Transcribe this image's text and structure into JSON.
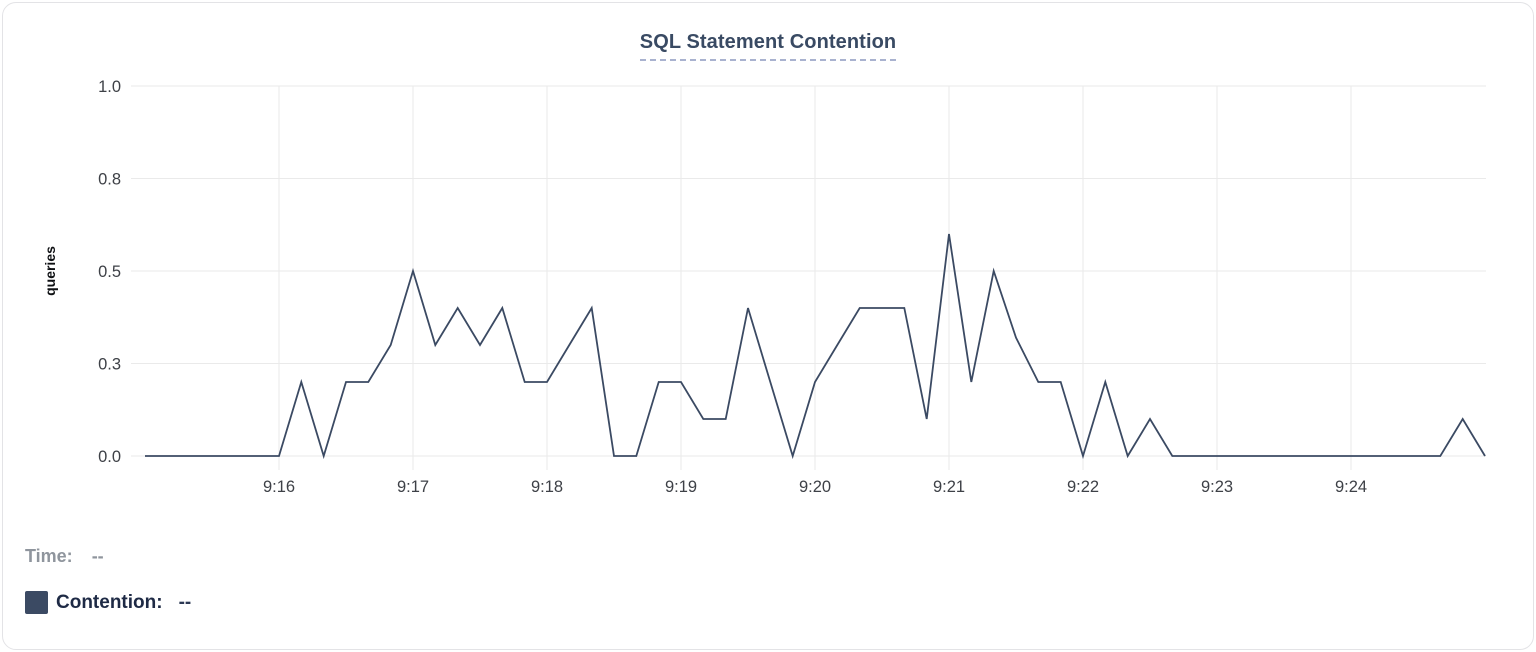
{
  "card": {
    "title": "SQL Statement Contention"
  },
  "chart_data": {
    "type": "line",
    "title": "SQL Statement Contention",
    "xlabel": "",
    "ylabel": "queries",
    "ylim": [
      0,
      1.0
    ],
    "grid": true,
    "grid_color": "#eaeaea",
    "x_start": "9:15:00",
    "x_end": "9:25:00",
    "point_interval_seconds": 10,
    "y_ticks": [
      {
        "value": 0,
        "label": "0.0"
      },
      {
        "value": 0.25,
        "label": "0.3"
      },
      {
        "value": 0.5,
        "label": "0.5"
      },
      {
        "value": 0.75,
        "label": "0.8"
      },
      {
        "value": 1.0,
        "label": "1.0"
      }
    ],
    "x_ticks": [
      {
        "time": "9:16:00",
        "label": "9:16"
      },
      {
        "time": "9:17:00",
        "label": "9:17"
      },
      {
        "time": "9:18:00",
        "label": "9:18"
      },
      {
        "time": "9:19:00",
        "label": "9:19"
      },
      {
        "time": "9:20:00",
        "label": "9:20"
      },
      {
        "time": "9:21:00",
        "label": "9:21"
      },
      {
        "time": "9:22:00",
        "label": "9:22"
      },
      {
        "time": "9:23:00",
        "label": "9:23"
      },
      {
        "time": "9:24:00",
        "label": "9:24"
      }
    ],
    "series": [
      {
        "name": "Contention",
        "color": "#3b4a63",
        "points": [
          [
            "9:15:00",
            0
          ],
          [
            "9:15:10",
            0
          ],
          [
            "9:15:20",
            0
          ],
          [
            "9:15:30",
            0
          ],
          [
            "9:15:40",
            0
          ],
          [
            "9:15:50",
            0
          ],
          [
            "9:16:00",
            0
          ],
          [
            "9:16:10",
            0.2
          ],
          [
            "9:16:20",
            0
          ],
          [
            "9:16:30",
            0.2
          ],
          [
            "9:16:40",
            0.2
          ],
          [
            "9:16:50",
            0.3
          ],
          [
            "9:17:00",
            0.5
          ],
          [
            "9:17:10",
            0.3
          ],
          [
            "9:17:20",
            0.4
          ],
          [
            "9:17:30",
            0.3
          ],
          [
            "9:17:40",
            0.4
          ],
          [
            "9:17:50",
            0.2
          ],
          [
            "9:18:00",
            0.2
          ],
          [
            "9:18:10",
            0.3
          ],
          [
            "9:18:20",
            0.4
          ],
          [
            "9:18:30",
            0
          ],
          [
            "9:18:40",
            0
          ],
          [
            "9:18:50",
            0.2
          ],
          [
            "9:19:00",
            0.2
          ],
          [
            "9:19:10",
            0.1
          ],
          [
            "9:19:20",
            0.1
          ],
          [
            "9:19:30",
            0.4
          ],
          [
            "9:19:40",
            0.2
          ],
          [
            "9:19:50",
            0
          ],
          [
            "9:20:00",
            0.2
          ],
          [
            "9:20:10",
            0.3
          ],
          [
            "9:20:20",
            0.4
          ],
          [
            "9:20:30",
            0.4
          ],
          [
            "9:20:40",
            0.4
          ],
          [
            "9:20:50",
            0.1
          ],
          [
            "9:21:00",
            0.6
          ],
          [
            "9:21:10",
            0.2
          ],
          [
            "9:21:20",
            0.5
          ],
          [
            "9:21:30",
            0.32
          ],
          [
            "9:21:40",
            0.2
          ],
          [
            "9:21:50",
            0.2
          ],
          [
            "9:22:00",
            0
          ],
          [
            "9:22:10",
            0.2
          ],
          [
            "9:22:20",
            0
          ],
          [
            "9:22:30",
            0.1
          ],
          [
            "9:22:40",
            0
          ],
          [
            "9:22:50",
            0
          ],
          [
            "9:23:00",
            0
          ],
          [
            "9:23:10",
            0
          ],
          [
            "9:23:20",
            0
          ],
          [
            "9:23:30",
            0
          ],
          [
            "9:23:40",
            0
          ],
          [
            "9:23:50",
            0
          ],
          [
            "9:24:00",
            0
          ],
          [
            "9:24:10",
            0
          ],
          [
            "9:24:20",
            0
          ],
          [
            "9:24:30",
            0
          ],
          [
            "9:24:40",
            0
          ],
          [
            "9:24:50",
            0.1
          ],
          [
            "9:25:00",
            0
          ]
        ]
      }
    ],
    "legend_position": "bottom-left"
  },
  "legend": {
    "time_label": "Time:",
    "time_value": "--",
    "series_label": "Contention:",
    "series_value": "--",
    "swatch_color": "#3b4a63"
  },
  "colors": {
    "title": "#394a63",
    "title_underline": "#a9b2cf",
    "line": "#3b4a63",
    "gridline": "#eaeaea",
    "tick_text": "#3e4147",
    "muted_text": "#8f959d",
    "legend_text": "#1e2a45",
    "card_border": "#e3e3e6"
  }
}
